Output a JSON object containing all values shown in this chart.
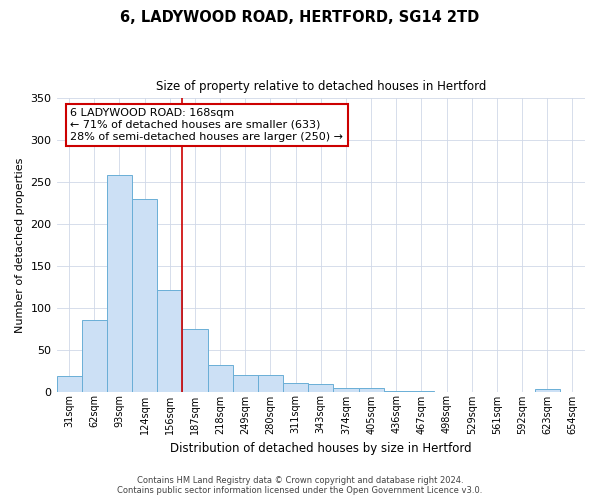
{
  "title": "6, LADYWOOD ROAD, HERTFORD, SG14 2TD",
  "subtitle": "Size of property relative to detached houses in Hertford",
  "xlabel": "Distribution of detached houses by size in Hertford",
  "ylabel": "Number of detached properties",
  "bar_labels": [
    "31sqm",
    "62sqm",
    "93sqm",
    "124sqm",
    "156sqm",
    "187sqm",
    "218sqm",
    "249sqm",
    "280sqm",
    "311sqm",
    "343sqm",
    "374sqm",
    "405sqm",
    "436sqm",
    "467sqm",
    "498sqm",
    "529sqm",
    "561sqm",
    "592sqm",
    "623sqm",
    "654sqm"
  ],
  "bar_values": [
    19,
    85,
    258,
    230,
    121,
    75,
    32,
    20,
    20,
    10,
    9,
    4,
    4,
    1,
    1,
    0,
    0,
    0,
    0,
    3,
    0
  ],
  "bar_color": "#cce0f5",
  "bar_edge_color": "#6aaed6",
  "vline_x": 4.5,
  "vline_color": "#cc0000",
  "annotation_text": "6 LADYWOOD ROAD: 168sqm\n← 71% of detached houses are smaller (633)\n28% of semi-detached houses are larger (250) →",
  "annotation_box_color": "#ffffff",
  "annotation_box_edge": "#cc0000",
  "ylim": [
    0,
    350
  ],
  "yticks": [
    0,
    50,
    100,
    150,
    200,
    250,
    300,
    350
  ],
  "footer_line1": "Contains HM Land Registry data © Crown copyright and database right 2024.",
  "footer_line2": "Contains public sector information licensed under the Open Government Licence v3.0.",
  "background_color": "#ffffff",
  "grid_color": "#d0d8e8"
}
